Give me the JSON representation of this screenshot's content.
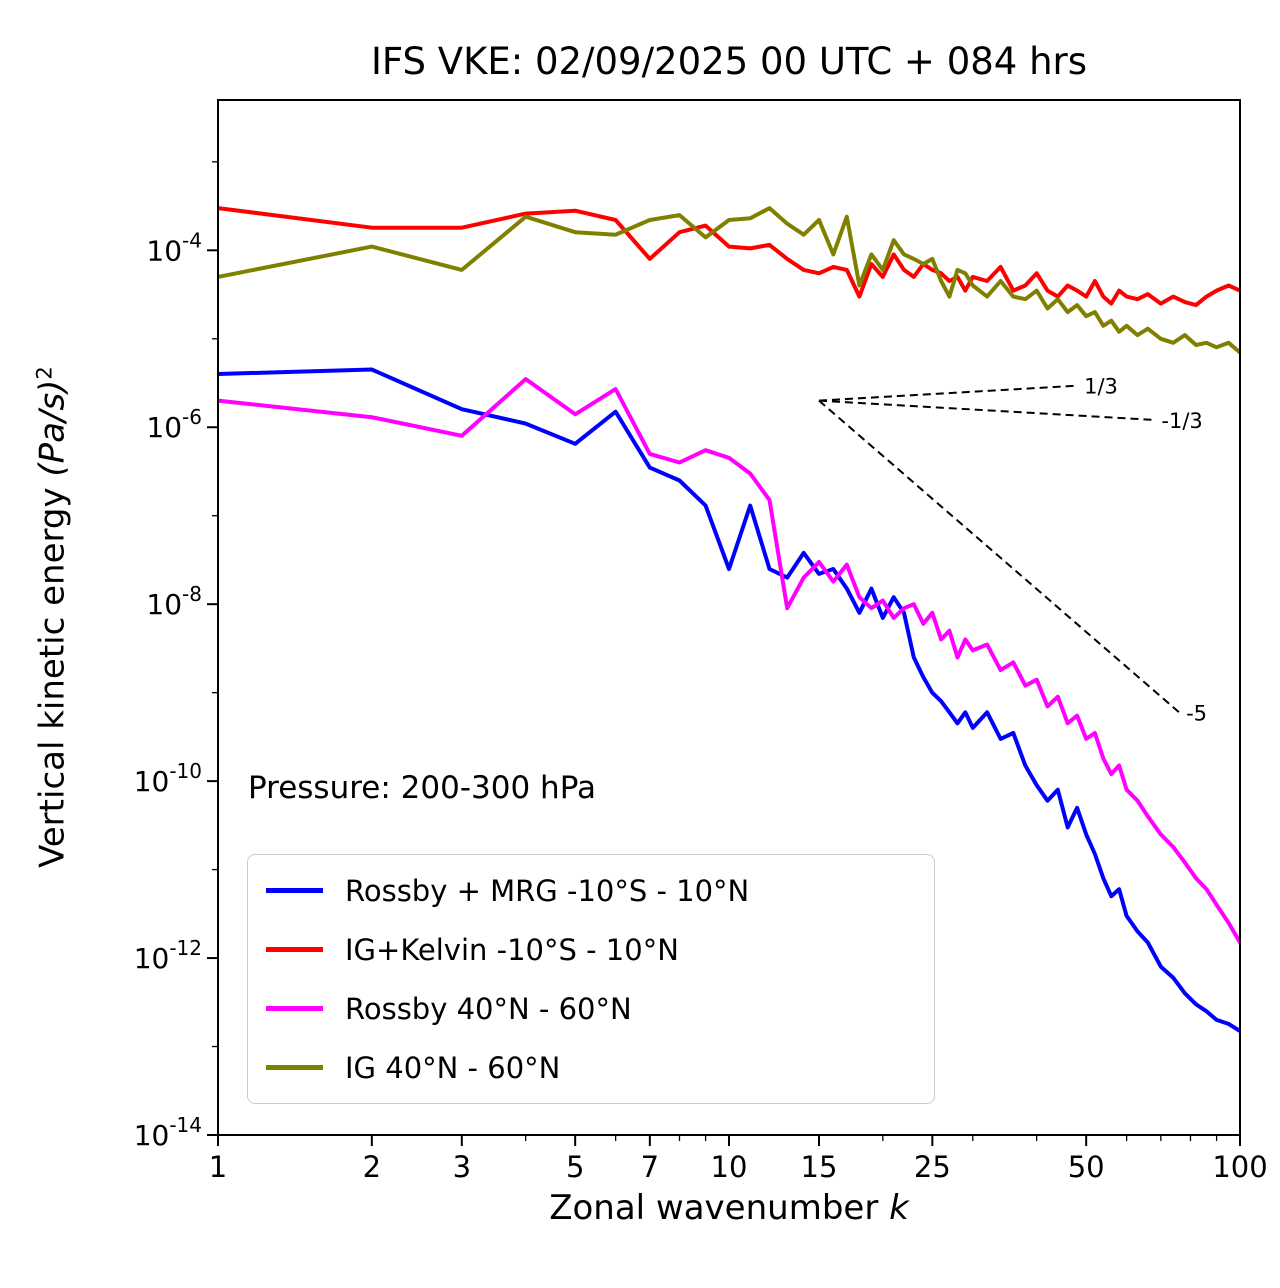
{
  "chart_data": {
    "type": "line",
    "title": "IFS VKE: 02/09/2025 00 UTC + 084 hrs",
    "xlabel": "Zonal wavenumber k",
    "ylabel": "Vertical kinetic energy (Pa/s)^2",
    "xlabel_parts": [
      "Zonal wavenumber ",
      "k"
    ],
    "ylabel_parts": [
      "Vertical kinetic energy ",
      "(Pa/s)",
      "2"
    ],
    "annotation": "Pressure: 200-300 hPa",
    "xscale": "log",
    "yscale": "log",
    "xlim": [
      1,
      100
    ],
    "ylim": [
      1e-14,
      0.005
    ],
    "grid": false,
    "legend_position": "lower left",
    "x_ticks": [
      1,
      2,
      3,
      5,
      7,
      10,
      15,
      25,
      50,
      100
    ],
    "x_minor_ticks": [
      4,
      6,
      8,
      9,
      20,
      30,
      40,
      60,
      70,
      80,
      90
    ],
    "y_tick_exponents_labeled": [
      -4,
      -6,
      -8,
      -10,
      -12,
      -14
    ],
    "y_tick_exponents_unlabeled": [
      -3,
      -5,
      -7,
      -9,
      -11,
      -13
    ],
    "x": [
      1,
      2,
      3,
      4,
      5,
      6,
      7,
      8,
      9,
      10,
      11,
      12,
      13,
      14,
      15,
      16,
      17,
      18,
      19,
      20,
      21,
      22,
      23,
      24,
      25,
      26,
      27,
      28,
      29,
      30,
      32,
      34,
      36,
      38,
      40,
      42,
      44,
      46,
      48,
      50,
      52,
      54,
      56,
      58,
      60,
      63,
      66,
      70,
      74,
      78,
      82,
      86,
      90,
      95,
      100
    ],
    "series": [
      {
        "name": "Rossby + MRG -10°S - 10°N",
        "slug": "rossby-mrg-tropics",
        "color": "#0000ff",
        "values": [
          4e-06,
          4.5e-06,
          1.6e-06,
          1.1e-06,
          6.5e-07,
          1.5e-06,
          3.5e-07,
          2.5e-07,
          1.3e-07,
          2.5e-08,
          1.3e-07,
          2.5e-08,
          2e-08,
          3.8e-08,
          2.2e-08,
          2.5e-08,
          1.5e-08,
          8e-09,
          1.5e-08,
          7e-09,
          1.2e-08,
          8e-09,
          2.5e-09,
          1.5e-09,
          1e-09,
          8e-10,
          6e-10,
          4.5e-10,
          6e-10,
          4e-10,
          6e-10,
          3e-10,
          3.5e-10,
          1.5e-10,
          9e-11,
          6e-11,
          8e-11,
          3e-11,
          5e-11,
          2.5e-11,
          1.5e-11,
          8e-12,
          5e-12,
          6e-12,
          3e-12,
          2e-12,
          1.5e-12,
          8e-13,
          6e-13,
          4e-13,
          3e-13,
          2.5e-13,
          2e-13,
          1.8e-13,
          1.5e-13
        ]
      },
      {
        "name": "IG+Kelvin -10°S - 10°N",
        "slug": "ig-kelvin-tropics",
        "color": "#ff0000",
        "values": [
          0.0003,
          0.00018,
          0.00018,
          0.00026,
          0.00028,
          0.00022,
          8e-05,
          0.00016,
          0.00019,
          0.00011,
          0.000105,
          0.000115,
          8e-05,
          6e-05,
          5.5e-05,
          6.5e-05,
          6e-05,
          3e-05,
          7e-05,
          5e-05,
          9e-05,
          6e-05,
          5e-05,
          7e-05,
          6e-05,
          5.5e-05,
          4.5e-05,
          5e-05,
          3.5e-05,
          5e-05,
          4.5e-05,
          6.5e-05,
          3.5e-05,
          4e-05,
          5.5e-05,
          3.5e-05,
          3e-05,
          4e-05,
          3.5e-05,
          3e-05,
          4.5e-05,
          3e-05,
          2.5e-05,
          3.5e-05,
          3e-05,
          2.8e-05,
          3.2e-05,
          2.5e-05,
          3e-05,
          2.6e-05,
          2.4e-05,
          3e-05,
          3.5e-05,
          4e-05,
          3.5e-05
        ]
      },
      {
        "name": "Rossby 40°N - 60°N",
        "slug": "rossby-midlat",
        "color": "#ff00ff",
        "values": [
          2e-06,
          1.3e-06,
          8e-07,
          3.5e-06,
          1.4e-06,
          2.7e-06,
          5e-07,
          4e-07,
          5.5e-07,
          4.5e-07,
          3e-07,
          1.5e-07,
          9e-09,
          2e-08,
          3e-08,
          1.8e-08,
          2.8e-08,
          1.2e-08,
          9e-09,
          1.1e-08,
          7e-09,
          9e-09,
          1e-08,
          6e-09,
          8e-09,
          4e-09,
          5e-09,
          2.5e-09,
          4e-09,
          3e-09,
          3.5e-09,
          1.8e-09,
          2.2e-09,
          1.2e-09,
          1.4e-09,
          7e-10,
          9e-10,
          4.5e-10,
          5.5e-10,
          3e-10,
          3.5e-10,
          1.8e-10,
          1.2e-10,
          1.5e-10,
          8e-11,
          6e-11,
          4e-11,
          2.5e-11,
          1.8e-11,
          1.2e-11,
          8e-12,
          6e-12,
          4e-12,
          2.5e-12,
          1.5e-12
        ]
      },
      {
        "name": "IG 40°N - 60°N",
        "slug": "ig-midlat",
        "color": "#808000",
        "values": [
          5e-05,
          0.00011,
          6e-05,
          0.00024,
          0.00016,
          0.00015,
          0.00022,
          0.00025,
          0.00014,
          0.00022,
          0.00023,
          0.0003,
          0.0002,
          0.00015,
          0.00022,
          9e-05,
          0.00024,
          4e-05,
          9e-05,
          6e-05,
          0.00013,
          9e-05,
          8e-05,
          7e-05,
          8e-05,
          4.5e-05,
          3e-05,
          6e-05,
          5.5e-05,
          4e-05,
          3e-05,
          4.5e-05,
          3e-05,
          2.8e-05,
          3.5e-05,
          2.2e-05,
          2.8e-05,
          2e-05,
          2.4e-05,
          1.8e-05,
          2e-05,
          1.4e-05,
          1.6e-05,
          1.2e-05,
          1.4e-05,
          1.1e-05,
          1.3e-05,
          1e-05,
          9e-06,
          1.1e-05,
          8.5e-06,
          9e-06,
          8e-06,
          9e-06,
          7e-06
        ]
      }
    ],
    "guide_lines": {
      "anchor": {
        "k": 15,
        "value": 2e-06
      },
      "lines": [
        {
          "slope": 0.3333,
          "k_end": 48,
          "label": "1/3"
        },
        {
          "slope": -0.3333,
          "k_end": 68,
          "label": "-1/3"
        },
        {
          "slope": -5,
          "k_end": 76,
          "label": "-5"
        }
      ]
    }
  }
}
